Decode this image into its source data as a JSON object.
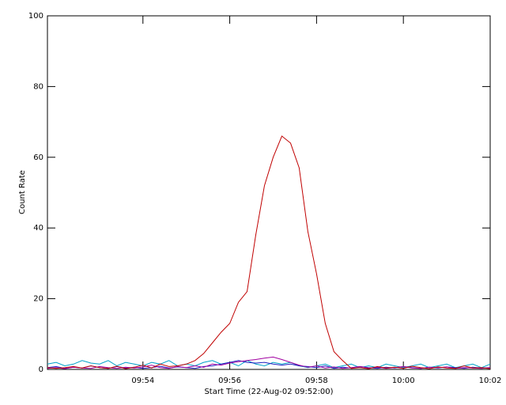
{
  "chart_data": {
    "type": "line",
    "xlabel": "Start Time (22-Aug-02 09:52:00)",
    "ylabel": "Count Rate",
    "x": [
      -0.2,
      0,
      0.2,
      0.4,
      0.6,
      0.8,
      1,
      1.2,
      1.4,
      1.6,
      1.8,
      2,
      2.2,
      2.4,
      2.6,
      2.8,
      3,
      3.2,
      3.4,
      3.6,
      3.8,
      4,
      4.2,
      4.4,
      4.6,
      4.8,
      5,
      5.2,
      5.4,
      5.6,
      5.8,
      6,
      6.2,
      6.4,
      6.6,
      6.8,
      7,
      7.2,
      7.4,
      7.6,
      7.8,
      8,
      8.2,
      8.4,
      8.6,
      8.8,
      9,
      9.2,
      9.4,
      9.6,
      9.8,
      10
    ],
    "series": [
      {
        "color": "#00a0c8",
        "values": [
          1.5,
          2,
          1,
          1.5,
          2.5,
          1.8,
          1.5,
          2.5,
          1,
          2,
          1.5,
          1,
          2,
          1.5,
          2.5,
          1,
          1.5,
          1,
          2,
          2.5,
          1.5,
          2,
          1,
          2.5,
          1.5,
          1,
          2,
          1.5,
          2,
          1,
          0.5,
          1,
          1.5,
          0.5,
          1,
          1.5,
          0.5,
          1,
          0.5,
          1.5,
          1,
          0.5,
          1,
          1.5,
          0.5,
          1,
          1.5,
          0.5,
          1,
          1.5,
          0.5,
          1.5
        ]
      },
      {
        "color": "#2020c0",
        "values": [
          0.5,
          0.8,
          0.3,
          0.6,
          0.4,
          1,
          0.5,
          0.3,
          0.8,
          0.4,
          0.6,
          0.3,
          0.5,
          0.9,
          0.4,
          0.7,
          0.5,
          0.3,
          0.8,
          1,
          1.5,
          2,
          2.5,
          2,
          1.8,
          2,
          1.5,
          1.2,
          1.5,
          1,
          0.8,
          0.5,
          1,
          0.3,
          0.6,
          0.4,
          0.8,
          0.5,
          0.3,
          0.6,
          0.4,
          0.8,
          0.5,
          0.3,
          0.6,
          0.4,
          0.7,
          0.5,
          0.3,
          0.6,
          0.4,
          0.5
        ]
      },
      {
        "color": "#a000a0",
        "values": [
          0.3,
          0.5,
          0.2,
          0.6,
          0.4,
          0.3,
          0.8,
          0.5,
          0.3,
          0.6,
          0.4,
          0.7,
          1.2,
          0.5,
          0.3,
          0.8,
          0.5,
          1,
          0.6,
          1.5,
          1.2,
          1.8,
          2.2,
          2.5,
          2.8,
          3.2,
          3.5,
          2.8,
          2,
          1.2,
          0.6,
          1,
          0.4,
          0.7,
          0.3,
          0.5,
          0.8,
          0.4,
          0.6,
          0.3,
          0.5,
          0.8,
          0.4,
          0.3,
          0.6,
          0.5,
          0.7,
          0.3,
          0.5,
          0.4,
          0.3,
          0.5
        ]
      },
      {
        "color": "#c00000",
        "values": [
          0.5,
          0.3,
          0.5,
          0.8,
          0.4,
          1,
          0.5,
          0.3,
          0.9,
          0.2,
          0.6,
          1.2,
          0.4,
          1.5,
          0.8,
          1,
          1.5,
          2.5,
          4.5,
          7.5,
          10.5,
          13,
          19,
          22,
          38,
          52,
          60,
          66,
          64,
          57,
          39,
          27,
          13,
          5,
          2.5,
          0.3,
          0.5,
          0.2,
          0.8,
          0.4,
          0.6,
          0.3,
          0.9,
          0.5,
          0.2,
          0.7,
          0.4,
          0.3,
          1,
          0.4,
          0.5,
          0.2
        ]
      }
    ],
    "xlim": [
      -0.2,
      10
    ],
    "xticks": [
      {
        "value": 2,
        "label": "09:54"
      },
      {
        "value": 4,
        "label": "09:56"
      },
      {
        "value": 6,
        "label": "09:58"
      },
      {
        "value": 8,
        "label": "10:00"
      },
      {
        "value": 10,
        "label": "10:02"
      }
    ],
    "ylim": [
      0,
      100
    ],
    "yticks": [
      0,
      20,
      40,
      60,
      80,
      100
    ]
  }
}
